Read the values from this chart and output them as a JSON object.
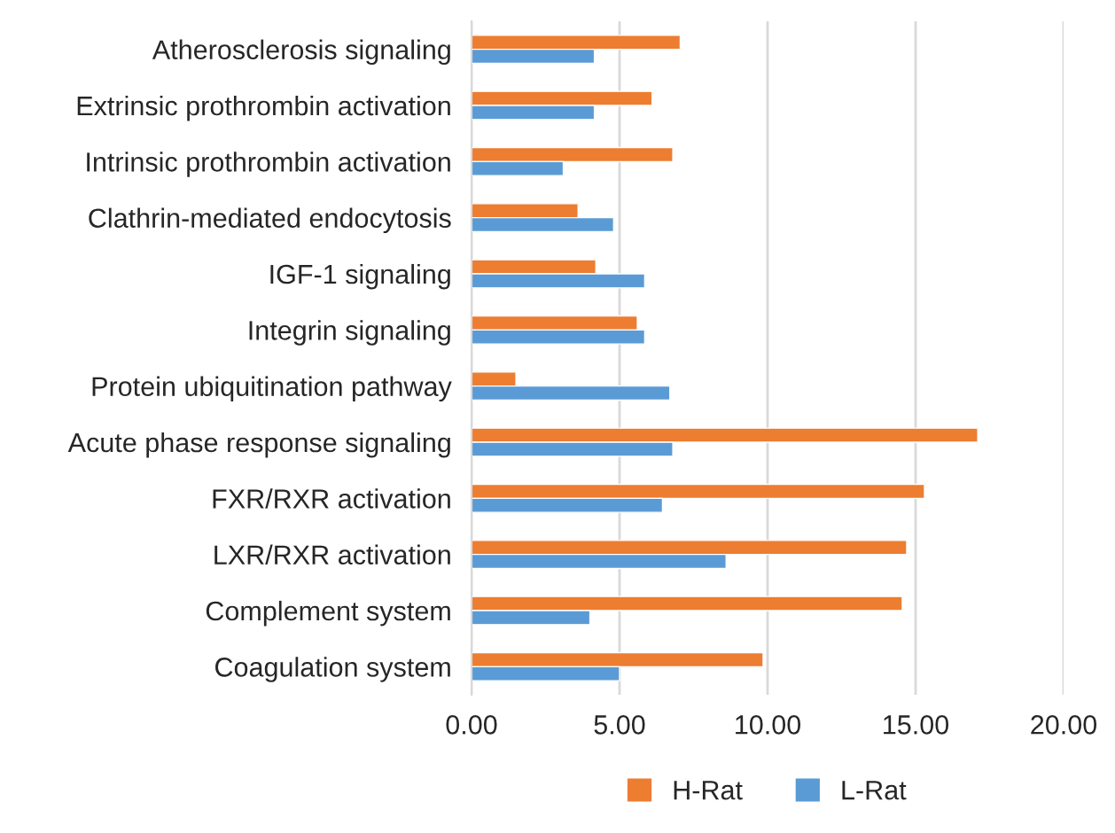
{
  "chart_data": {
    "type": "bar",
    "orientation": "horizontal",
    "categories": [
      "Atherosclerosis signaling",
      "Extrinsic prothrombin activation",
      "Intrinsic prothrombin activation",
      "Clathrin-mediated endocytosis",
      "IGF-1 signaling",
      "Integrin signaling",
      "Protein ubiquitination pathway",
      "Acute phase response signaling",
      "FXR/RXR activation",
      "LXR/RXR activation",
      "Complement system",
      "Coagulation system"
    ],
    "series": [
      {
        "name": "H-Rat",
        "color": "#ed7d31",
        "values": [
          7.05,
          6.1,
          6.8,
          3.6,
          4.2,
          5.6,
          1.5,
          17.1,
          15.3,
          14.7,
          14.55,
          9.85
        ]
      },
      {
        "name": "L-Rat",
        "color": "#5b9bd5",
        "values": [
          4.15,
          4.15,
          3.1,
          4.8,
          5.85,
          5.85,
          6.7,
          6.8,
          6.45,
          8.6,
          4.0,
          5.0
        ]
      }
    ],
    "xlim": [
      0,
      20
    ],
    "xticks": [
      {
        "value": 0,
        "label": "0.00"
      },
      {
        "value": 5,
        "label": "5.00"
      },
      {
        "value": 10,
        "label": "10.00"
      },
      {
        "value": 15,
        "label": "15.00"
      },
      {
        "value": 20,
        "label": "20.00"
      }
    ],
    "grid": "x",
    "legend": "bottom"
  }
}
